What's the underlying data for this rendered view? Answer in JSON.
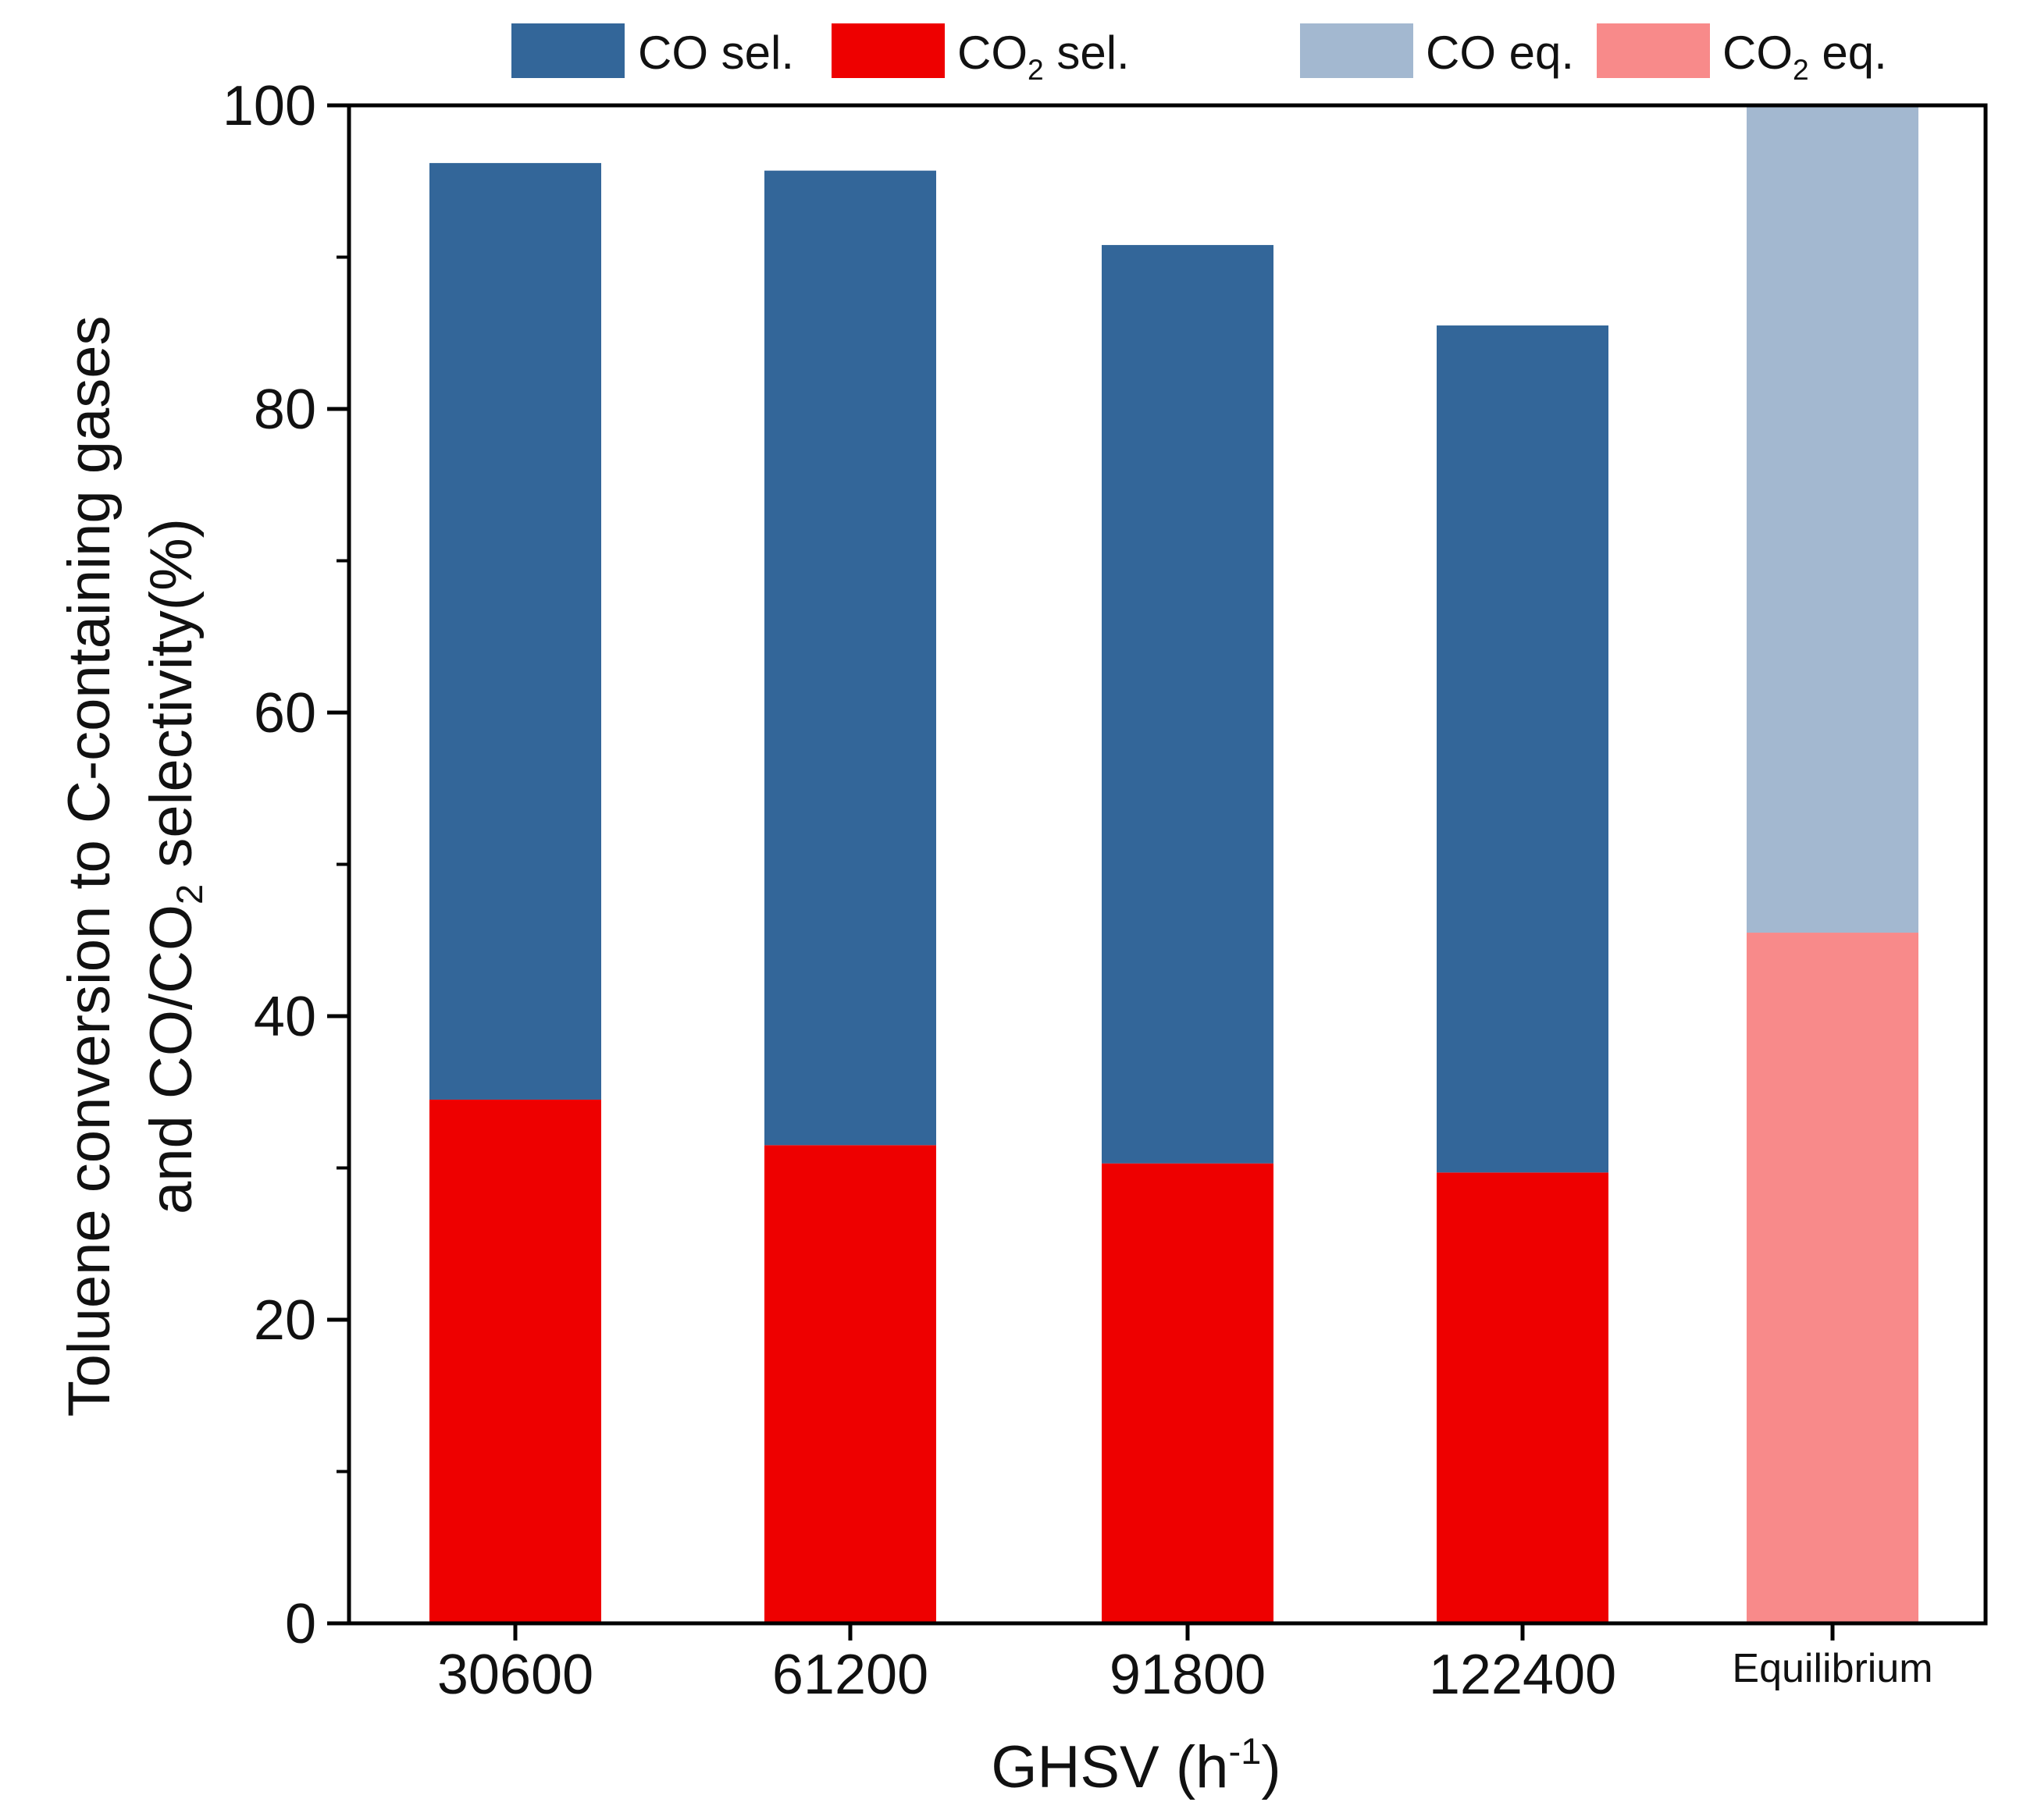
{
  "chart_data": {
    "type": "bar",
    "stacked": true,
    "categories": [
      "30600",
      "61200",
      "91800",
      "122400",
      "Equilibrium"
    ],
    "series": [
      {
        "name": "CO2 sel.",
        "legend_key": "co2_sel",
        "color": "#ee0000",
        "values": [
          34.5,
          31.5,
          30.3,
          29.7,
          null
        ]
      },
      {
        "name": "CO sel.",
        "legend_key": "co_sel",
        "color": "#336699",
        "values": [
          61.7,
          64.2,
          60.5,
          55.8,
          null
        ]
      },
      {
        "name": "CO2 eq.",
        "legend_key": "co2_eq",
        "color": "#f88a8a",
        "values": [
          null,
          null,
          null,
          null,
          45.5
        ]
      },
      {
        "name": "CO eq.",
        "legend_key": "co_eq",
        "color": "#a3b8d0",
        "values": [
          null,
          null,
          null,
          null,
          54.5
        ]
      }
    ],
    "legend": {
      "position": "top",
      "co_sel": {
        "main": "CO",
        "sub": "",
        "rest": " sel."
      },
      "co2_sel": {
        "main": "CO",
        "sub": "2",
        "rest": " sel."
      },
      "co_eq": {
        "main": "CO",
        "sub": "",
        "rest": " eq."
      },
      "co2_eq": {
        "main": "CO",
        "sub": "2",
        "rest": " eq."
      }
    },
    "xlabel": {
      "main": "GHSV (h",
      "sup": "-1",
      "rest": ")"
    },
    "ylabel": {
      "line1": "Toluene conversion to C-containing gases",
      "line2_main": "and CO/CO",
      "line2_sub": "2",
      "line2_rest": " selectivity(%)"
    },
    "ylim": [
      0,
      100
    ],
    "yticks": [
      0,
      20,
      40,
      60,
      80,
      100
    ],
    "yticks_minor": [
      10,
      30,
      50,
      70,
      90
    ],
    "grid": false
  }
}
